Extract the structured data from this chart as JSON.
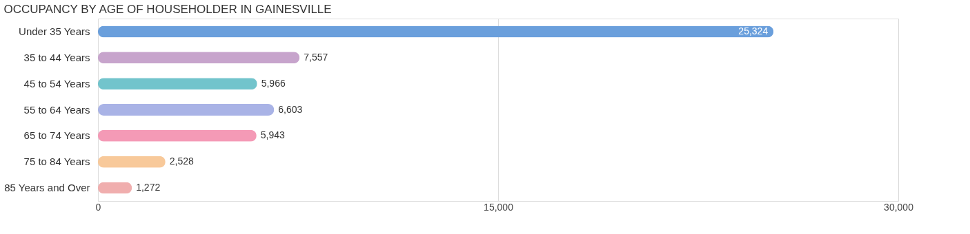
{
  "chart_data": {
    "type": "bar",
    "orientation": "horizontal",
    "title": "OCCUPANCY BY AGE OF HOUSEHOLDER IN GAINESVILLE",
    "categories": [
      "Under 35 Years",
      "35 to 44 Years",
      "45 to 54 Years",
      "55 to 64 Years",
      "65 to 74 Years",
      "75 to 84 Years",
      "85 Years and Over"
    ],
    "values": [
      25324,
      7557,
      5966,
      6603,
      5943,
      2528,
      1272
    ],
    "colors": [
      "#6a9fdc",
      "#c7a4cc",
      "#72c4cc",
      "#a9b3e6",
      "#f49ab6",
      "#f8c99a",
      "#f0aeae"
    ],
    "value_labels": [
      "25,324",
      "7,557",
      "5,966",
      "6,603",
      "5,943",
      "2,528",
      "1,272"
    ],
    "xlim": [
      0,
      30000
    ],
    "xticks": [
      0,
      {
        "value": 15000,
        "label": "15,000"
      },
      {
        "value": 30000,
        "label": "30,000"
      }
    ],
    "grid": "x"
  }
}
